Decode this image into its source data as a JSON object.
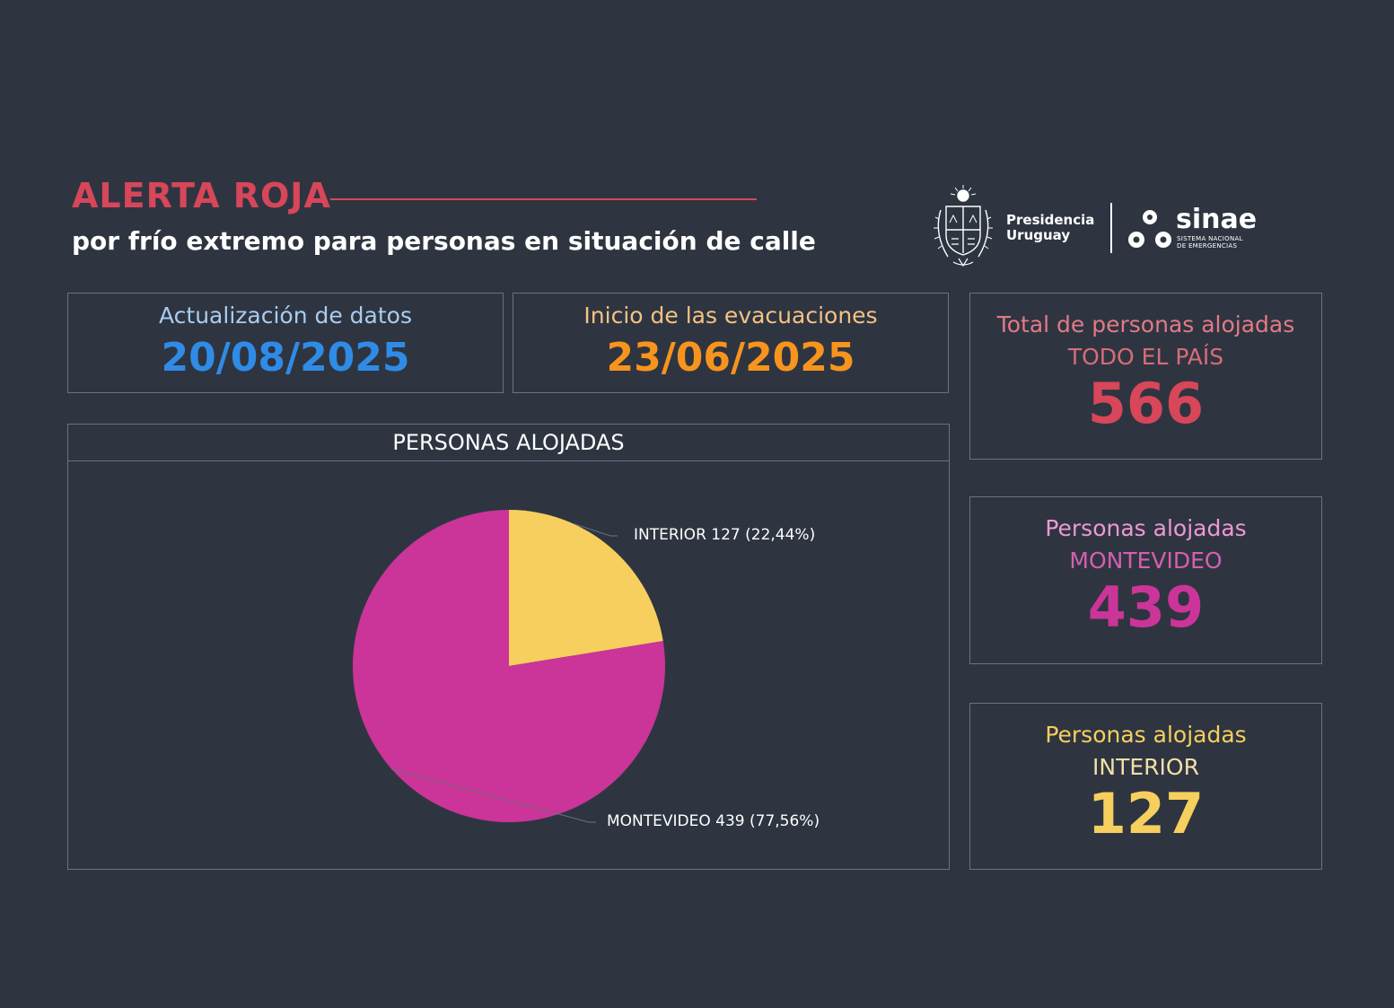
{
  "header": {
    "title": "ALERTA ROJA",
    "subtitle": "por frío extremo para personas en situación de calle"
  },
  "logos": {
    "presidencia_line1": "Presidencia",
    "presidencia_line2": "Uruguay",
    "sinae_name": "sinae",
    "sinae_sub_line1": "SISTEMA NACIONAL",
    "sinae_sub_line2": "DE EMERGENCIAS"
  },
  "cards": {
    "update": {
      "label": "Actualización de datos",
      "value": "20/08/2025"
    },
    "start": {
      "label": "Inicio de las evacuaciones",
      "value": "23/06/2025"
    },
    "total": {
      "label1": "Total de personas alojadas",
      "label2": "TODO EL PAÍS",
      "value": "566"
    },
    "montevideo": {
      "label1": "Personas alojadas",
      "label2": "MONTEVIDEO",
      "value": "439"
    },
    "interior": {
      "label1": "Personas alojadas",
      "label2": "INTERIOR",
      "value": "127"
    }
  },
  "colors": {
    "montevideo": "#cb3498",
    "interior": "#f7cf5e"
  },
  "chart_data": {
    "type": "pie",
    "title": "PERSONAS ALOJADAS",
    "slices": [
      {
        "name": "INTERIOR",
        "value": 127,
        "percent_label": "(22,44%)",
        "color": "#f7cf5e"
      },
      {
        "name": "MONTEVIDEO",
        "value": 439,
        "percent_label": "(77,56%)",
        "color": "#cb3498"
      }
    ]
  }
}
